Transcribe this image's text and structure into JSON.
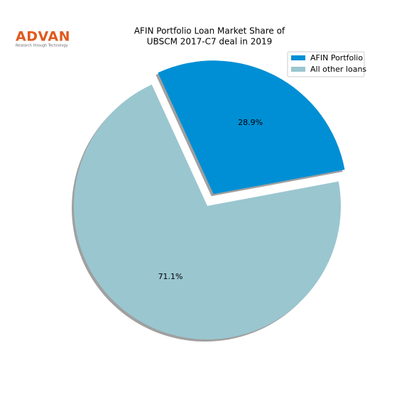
{
  "logo": {
    "name": "ADVAN",
    "tagline": "Research through Technology"
  },
  "chart_data": {
    "type": "pie",
    "title": [
      "AFIN Portfolio Loan Market Share of",
      "UBSCM 2017-C7 deal in 2019"
    ],
    "categories": [
      "AFIN Portfolio",
      "All other loans"
    ],
    "values": [
      28.9,
      71.1
    ],
    "value_labels": [
      "28.9%",
      "71.1%"
    ],
    "colors": [
      "#008fd5",
      "#9ac6d0"
    ],
    "legend": "upper right"
  }
}
